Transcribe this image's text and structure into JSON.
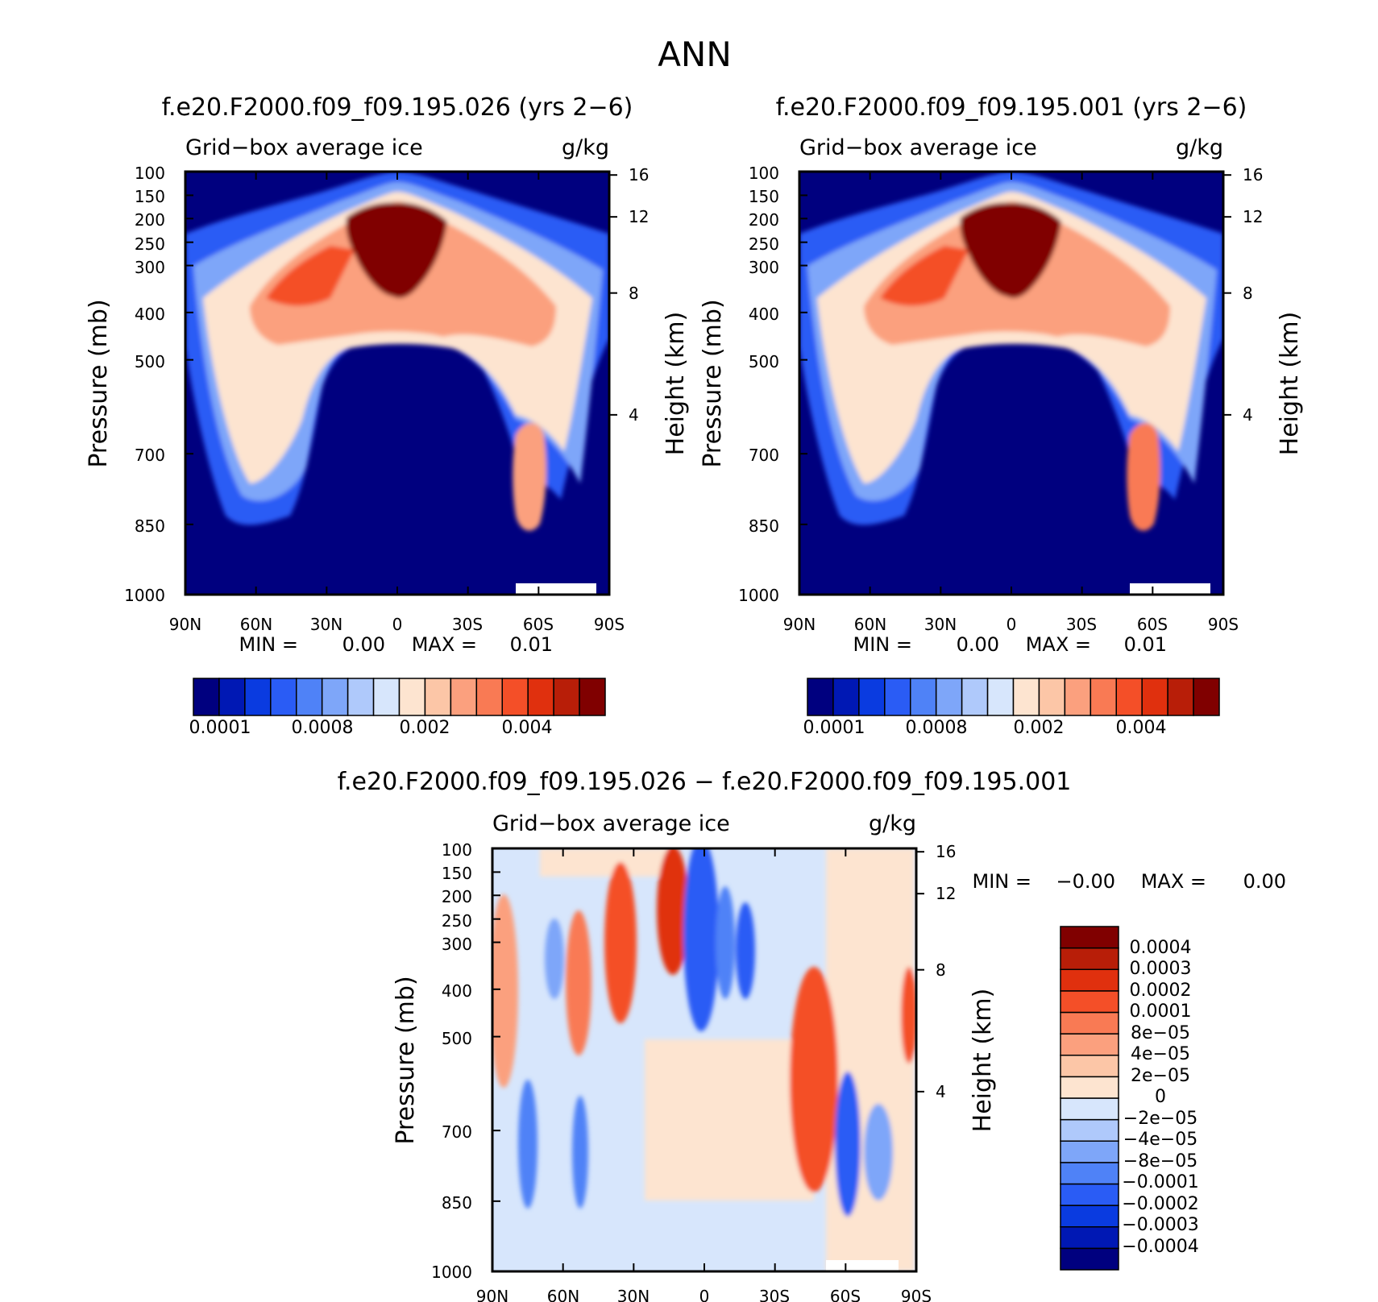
{
  "page_title": "ANN",
  "colors": {
    "ctrl": [
      "#00007f",
      "#0018b4",
      "#0a3be0",
      "#2a5cf5",
      "#4f82f7",
      "#7ea6f9",
      "#afc9fb",
      "#d7e6fc",
      "#fde4d0",
      "#fcc6a7",
      "#fba07e",
      "#f97a54",
      "#f44f28",
      "#e0300e",
      "#b81e08",
      "#800000"
    ],
    "diff": [
      "#00007f",
      "#0018b4",
      "#0a3be0",
      "#2a5cf5",
      "#4f82f7",
      "#7ea6f9",
      "#afc9fb",
      "#d7e6fc",
      "#fde4d0",
      "#fcc6a7",
      "#fba07e",
      "#f97a54",
      "#f44f28",
      "#e0300e",
      "#b81e08",
      "#800000"
    ]
  },
  "chart_data": [
    {
      "type": "contour",
      "title": "f.e20.F2000.f09_f09.195.026 (yrs 2−6)",
      "left_label": "Grid−box average ice",
      "right_label": "g/kg",
      "ylabel": "Pressure (mb)",
      "ylabel2": "Height (km)",
      "x_ticks": [
        "90N",
        "60N",
        "30N",
        "0",
        "30S",
        "60S",
        "90S"
      ],
      "y_ticks": [
        "100",
        "150",
        "200",
        "250",
        "300",
        "400",
        "500",
        "700",
        "850",
        "1000"
      ],
      "y2_ticks": [
        "16",
        "12",
        "8",
        "4"
      ],
      "stats": {
        "min_label": "MIN =",
        "min": "0.00",
        "max_label": "MAX =",
        "max": "0.01"
      },
      "colorbar_labels": [
        "0.0001",
        "0.0008",
        "0.002",
        "0.004"
      ]
    },
    {
      "type": "contour",
      "title": "f.e20.F2000.f09_f09.195.001 (yrs 2−6)",
      "left_label": "Grid−box average ice",
      "right_label": "g/kg",
      "ylabel": "Pressure (mb)",
      "ylabel2": "Height (km)",
      "x_ticks": [
        "90N",
        "60N",
        "30N",
        "0",
        "30S",
        "60S",
        "90S"
      ],
      "y_ticks": [
        "100",
        "150",
        "200",
        "250",
        "300",
        "400",
        "500",
        "700",
        "850",
        "1000"
      ],
      "y2_ticks": [
        "16",
        "12",
        "8",
        "4"
      ],
      "stats": {
        "min_label": "MIN =",
        "min": "0.00",
        "max_label": "MAX =",
        "max": "0.01"
      },
      "colorbar_labels": [
        "0.0001",
        "0.0008",
        "0.002",
        "0.004"
      ]
    },
    {
      "type": "contour",
      "title": "f.e20.F2000.f09_f09.195.026 − f.e20.F2000.f09_f09.195.001",
      "left_label": "Grid−box average ice",
      "right_label": "g/kg",
      "ylabel": "Pressure (mb)",
      "ylabel2": "Height (km)",
      "x_ticks": [
        "90N",
        "60N",
        "30N",
        "0",
        "30S",
        "60S",
        "90S"
      ],
      "y_ticks": [
        "100",
        "150",
        "200",
        "250",
        "300",
        "400",
        "500",
        "700",
        "850",
        "1000"
      ],
      "y2_ticks": [
        "16",
        "12",
        "8",
        "4"
      ],
      "stats": {
        "min_label": "MIN =",
        "min": "−0.00",
        "max_label": "MAX =",
        "max": "0.00"
      },
      "colorbar_labels": [
        "0.0004",
        "0.0003",
        "0.0002",
        "0.0001",
        "8e−05",
        "4e−05",
        "2e−05",
        "0",
        "−2e−05",
        "−4e−05",
        "−8e−05",
        "−0.0001",
        "−0.0002",
        "−0.0003",
        "−0.0004"
      ]
    }
  ]
}
